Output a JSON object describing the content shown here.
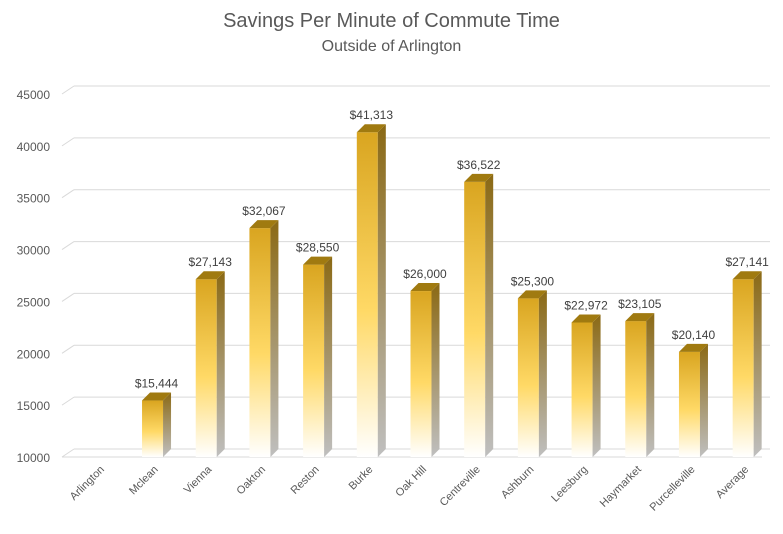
{
  "chart_data": {
    "type": "bar",
    "title": "Savings Per Minute of Commute Time",
    "subtitle": "Outside of Arlington",
    "xlabel": "",
    "ylabel": "",
    "ylim": [
      10000,
      45000
    ],
    "y_ticks": [
      10000,
      15000,
      20000,
      25000,
      30000,
      35000,
      40000,
      45000
    ],
    "grid": true,
    "legend": "none",
    "categories": [
      "Arlington",
      "Mclean",
      "Vienna",
      "Oakton",
      "Reston",
      "Burke",
      "Oak Hill",
      "Centreville",
      "Ashburn",
      "Leesburg",
      "Haymarket",
      "Purcelleville",
      "Average"
    ],
    "values": [
      null,
      15444,
      27143,
      32067,
      28550,
      41313,
      26000,
      36522,
      25300,
      22972,
      23105,
      20140,
      27141
    ],
    "data_labels": [
      "",
      "$15,444",
      "$27,143",
      "$32,067",
      "$28,550",
      "$41,313",
      "$26,000",
      "$36,522",
      "$25,300",
      "$22,972",
      "$23,105",
      "$20,140",
      "$27,141"
    ],
    "colors": {
      "bar_top": "#D9A520",
      "bar_mid": "#FFD966",
      "bar_bottom": "#FFFFFF",
      "bar_side": "#8B6914",
      "bar_cap": "#A07A10",
      "text": "#595959",
      "grid": "#D9D9D9"
    }
  }
}
